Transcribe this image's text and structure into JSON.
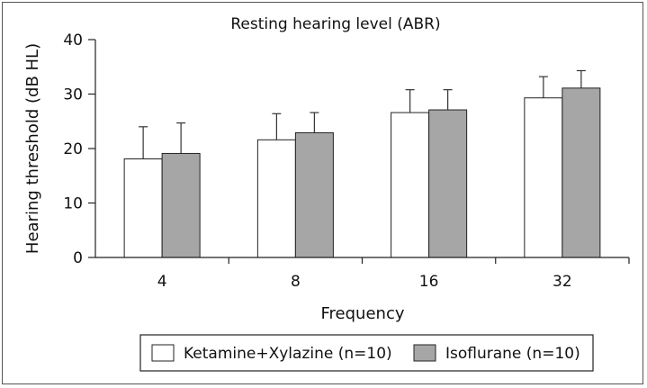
{
  "chart_data": {
    "type": "bar",
    "title": "Resting hearing level (ABR)",
    "xlabel": "Frequency",
    "ylabel": "Hearing threshold (dB HL)",
    "categories": [
      "4",
      "8",
      "16",
      "32"
    ],
    "ylim": [
      0,
      40
    ],
    "yticks": [
      "0",
      "10",
      "20",
      "30",
      "40"
    ],
    "grid": false,
    "legend_position": "bottom",
    "series": [
      {
        "name": "Ketamine+Xylazine (n=10)",
        "color": "#ffffff",
        "values": [
          18.1,
          21.6,
          26.6,
          29.3
        ],
        "error": [
          5.9,
          4.8,
          4.2,
          3.9
        ]
      },
      {
        "name": "Isoflurane (n=10)",
        "color": "#a6a6a6",
        "values": [
          19.1,
          22.9,
          27.1,
          31.1
        ],
        "error": [
          5.6,
          3.7,
          3.7,
          3.2
        ]
      }
    ]
  }
}
